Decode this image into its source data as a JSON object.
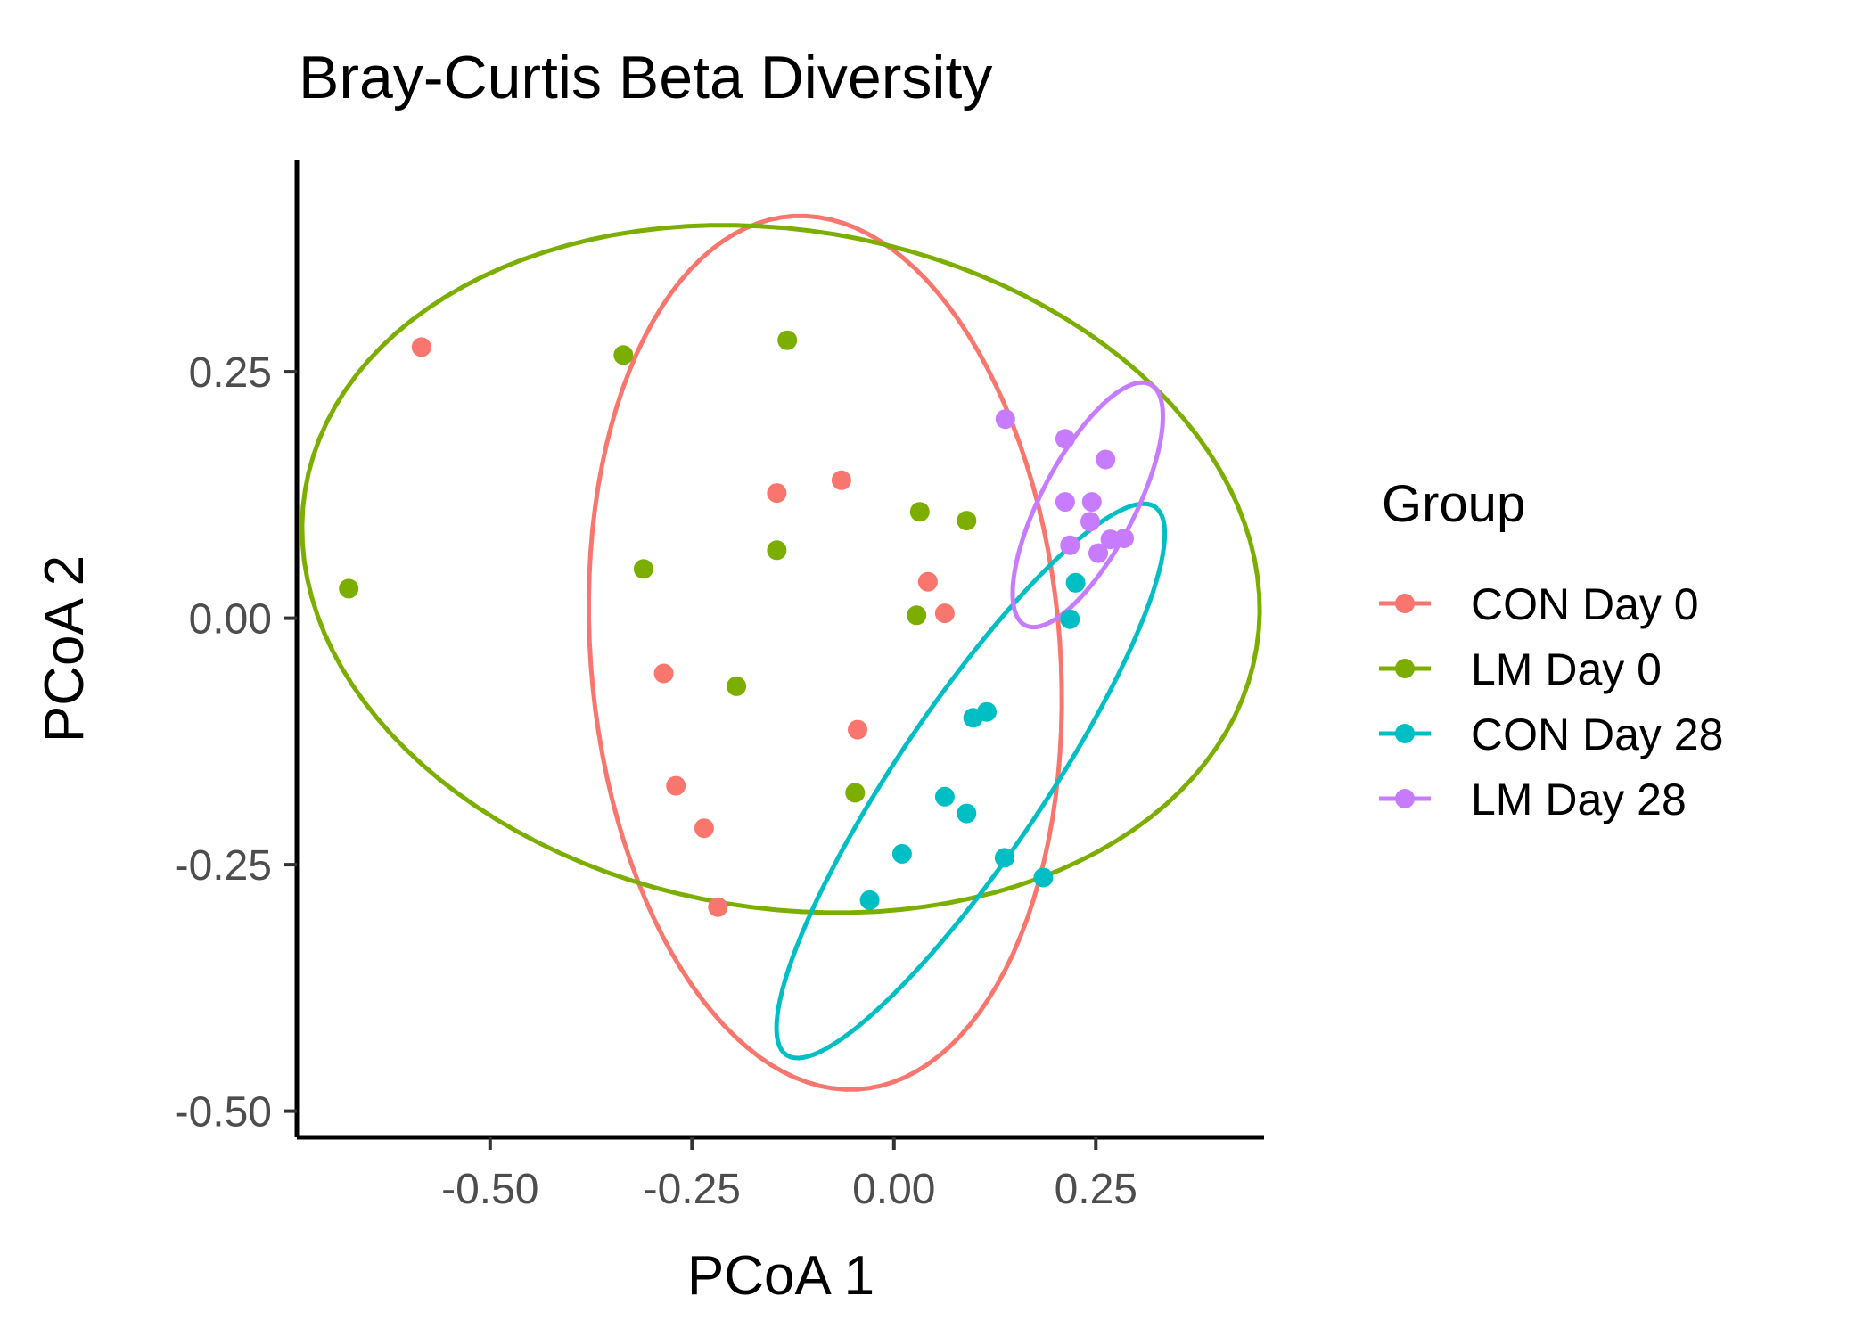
{
  "chart_data": {
    "type": "scatter",
    "title": "Bray-Curtis Beta Diversity",
    "xlabel": "PCoA 1",
    "ylabel": "PCoA 2",
    "xlim": [
      -0.745,
      0.458
    ],
    "ylim": [
      -0.525,
      0.465
    ],
    "x_ticks": [
      -0.5,
      -0.25,
      0.0,
      0.25
    ],
    "x_tick_labels": [
      "-0.50",
      "-0.25",
      "0.00",
      "0.25"
    ],
    "y_ticks": [
      -0.5,
      -0.25,
      0.0,
      0.25
    ],
    "y_tick_labels": [
      "-0.50",
      "-0.25",
      "0.00",
      "0.25"
    ],
    "grid": false,
    "legend": {
      "title": "Group",
      "placement": "right"
    },
    "series": [
      {
        "name": "CON Day 0",
        "color": "#F8766D",
        "points": [
          [
            -0.585,
            0.275
          ],
          [
            -0.145,
            0.127
          ],
          [
            -0.065,
            0.14
          ],
          [
            0.042,
            0.037
          ],
          [
            0.063,
            0.005
          ],
          [
            -0.285,
            -0.056
          ],
          [
            -0.045,
            -0.113
          ],
          [
            -0.27,
            -0.17
          ],
          [
            -0.235,
            -0.213
          ],
          [
            -0.218,
            -0.293
          ]
        ],
        "ellipse": {
          "cx": -0.085,
          "cy": -0.035,
          "rx": 0.29,
          "ry": 0.445,
          "angle_deg": 7
        }
      },
      {
        "name": "LM Day 0",
        "color": "#7CAE00",
        "points": [
          [
            -0.675,
            0.03
          ],
          [
            -0.335,
            0.267
          ],
          [
            -0.132,
            0.282
          ],
          [
            -0.31,
            0.05
          ],
          [
            -0.145,
            0.069
          ],
          [
            0.032,
            0.108
          ],
          [
            0.09,
            0.099
          ],
          [
            0.028,
            0.003
          ],
          [
            -0.195,
            -0.069
          ],
          [
            -0.048,
            -0.177
          ]
        ],
        "ellipse": {
          "cx": -0.14,
          "cy": 0.05,
          "rx": 0.595,
          "ry": 0.345,
          "angle_deg": -6
        }
      },
      {
        "name": "CON Day 28",
        "color": "#00BFC4",
        "points": [
          [
            0.225,
            0.036
          ],
          [
            0.218,
            -0.001
          ],
          [
            0.115,
            -0.095
          ],
          [
            0.098,
            -0.101
          ],
          [
            0.063,
            -0.181
          ],
          [
            0.09,
            -0.198
          ],
          [
            0.01,
            -0.239
          ],
          [
            0.137,
            -0.243
          ],
          [
            -0.03,
            -0.286
          ],
          [
            0.185,
            -0.263
          ]
        ],
        "ellipse": {
          "cx": 0.095,
          "cy": -0.165,
          "rx": 0.36,
          "ry": 0.085,
          "angle_deg": 50
        }
      },
      {
        "name": "LM Day 28",
        "color": "#C77CFF",
        "points": [
          [
            0.138,
            0.202
          ],
          [
            0.212,
            0.182
          ],
          [
            0.262,
            0.161
          ],
          [
            0.212,
            0.118
          ],
          [
            0.245,
            0.118
          ],
          [
            0.243,
            0.098
          ],
          [
            0.218,
            0.074
          ],
          [
            0.268,
            0.08
          ],
          [
            0.285,
            0.081
          ],
          [
            0.253,
            0.066
          ]
        ],
        "ellipse": {
          "cx": 0.24,
          "cy": 0.115,
          "rx": 0.145,
          "ry": 0.055,
          "angle_deg": 56
        }
      }
    ]
  }
}
